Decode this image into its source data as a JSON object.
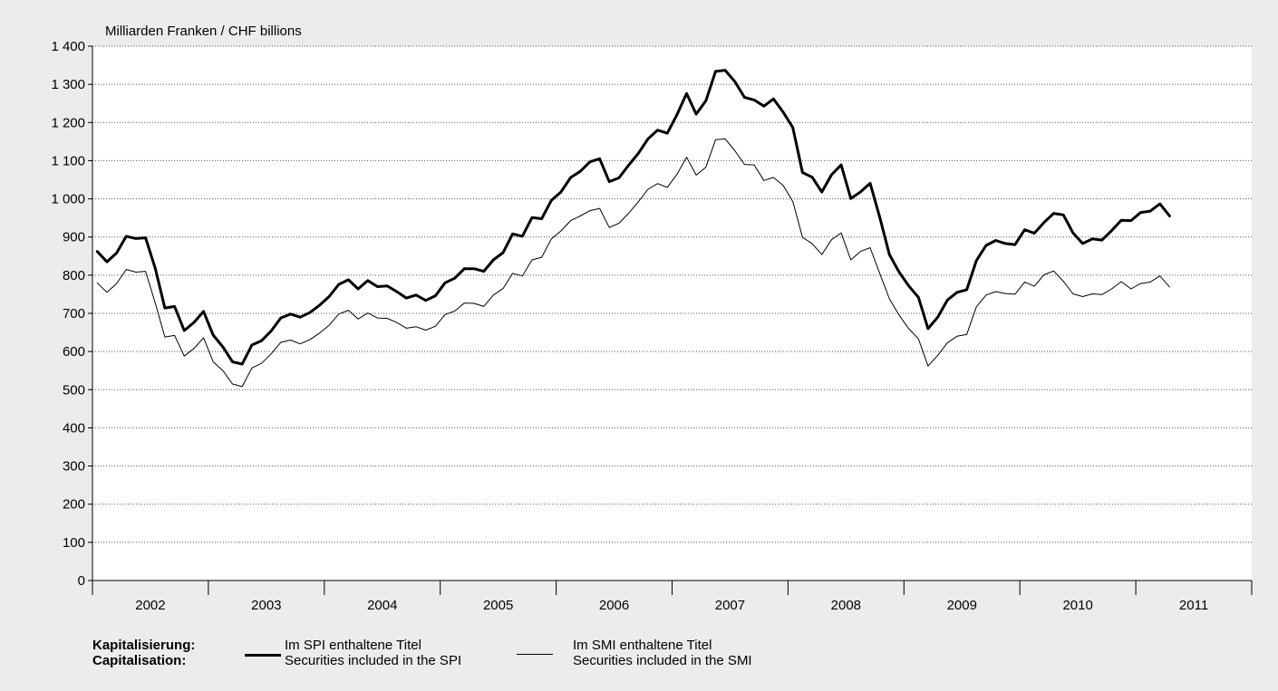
{
  "chart_data": {
    "type": "line",
    "y_unit_label": "Milliarden Franken / CHF billions",
    "ylim": [
      0,
      1400
    ],
    "y_ticks": [
      {
        "value": 0,
        "label": "0"
      },
      {
        "value": 100,
        "label": "100"
      },
      {
        "value": 200,
        "label": "200"
      },
      {
        "value": 300,
        "label": "300"
      },
      {
        "value": 400,
        "label": "400"
      },
      {
        "value": 500,
        "label": "500"
      },
      {
        "value": 600,
        "label": "600"
      },
      {
        "value": 700,
        "label": "700"
      },
      {
        "value": 800,
        "label": "800"
      },
      {
        "value": 900,
        "label": "900"
      },
      {
        "value": 1000,
        "label": "1 000"
      },
      {
        "value": 1100,
        "label": "1 100"
      },
      {
        "value": 1200,
        "label": "1 200"
      },
      {
        "value": 1300,
        "label": "1 300"
      },
      {
        "value": 1400,
        "label": "1 400"
      }
    ],
    "x_years": [
      "2002",
      "2003",
      "2004",
      "2005",
      "2006",
      "2007",
      "2008",
      "2009",
      "2010",
      "2011"
    ],
    "xlim": [
      "2002-01",
      "2011-12"
    ],
    "grid": "horizontal dotted",
    "legend_position": "bottom",
    "series": [
      {
        "name": "Im SPI enthaltene Titel",
        "name_en": "Securities included in the SPI",
        "style": "thick",
        "start": "2002-01",
        "values": [
          862,
          835,
          858,
          902,
          896,
          898,
          818,
          714,
          718,
          655,
          676,
          705,
          643,
          612,
          573,
          567,
          617,
          628,
          654,
          688,
          698,
          690,
          702,
          721,
          744,
          776,
          788,
          764,
          786,
          770,
          772,
          757,
          740,
          748,
          734,
          746,
          780,
          792,
          817,
          817,
          810,
          840,
          859,
          908,
          902,
          951,
          948,
          996,
          1018,
          1056,
          1072,
          1097,
          1105,
          1045,
          1055,
          1088,
          1119,
          1157,
          1180,
          1172,
          1220,
          1276,
          1222,
          1257,
          1334,
          1337,
          1307,
          1266,
          1259,
          1243,
          1262,
          1227,
          1187,
          1069,
          1057,
          1018,
          1063,
          1089,
          1001,
          1018,
          1041,
          951,
          854,
          808,
          772,
          742,
          660,
          690,
          735,
          755,
          762,
          838,
          878,
          891,
          883,
          880,
          919,
          910,
          938,
          962,
          958,
          911,
          883,
          895,
          892,
          917,
          944,
          943,
          964,
          968,
          987,
          955
        ]
      },
      {
        "name": "Im SMI enthaltene Titel",
        "name_en": "Securities included in the SMI",
        "style": "thin",
        "start": "2002-01",
        "values": [
          780,
          755,
          778,
          815,
          808,
          810,
          727,
          638,
          642,
          588,
          608,
          636,
          573,
          550,
          515,
          508,
          557,
          569,
          594,
          624,
          630,
          620,
          631,
          648,
          669,
          698,
          708,
          685,
          701,
          688,
          687,
          676,
          661,
          665,
          656,
          666,
          697,
          706,
          727,
          726,
          718,
          748,
          765,
          805,
          798,
          840,
          847,
          895,
          916,
          943,
          955,
          969,
          975,
          925,
          936,
          962,
          992,
          1025,
          1040,
          1030,
          1064,
          1109,
          1062,
          1083,
          1155,
          1157,
          1126,
          1090,
          1089,
          1048,
          1056,
          1035,
          993,
          899,
          883,
          854,
          893,
          911,
          840,
          862,
          872,
          804,
          738,
          695,
          660,
          633,
          562,
          590,
          623,
          640,
          645,
          717,
          748,
          757,
          752,
          750,
          782,
          771,
          801,
          811,
          784,
          751,
          744,
          751,
          749,
          764,
          783,
          764,
          778,
          782,
          798,
          769
        ]
      }
    ]
  },
  "legend": {
    "title": "Kapitalisierung:",
    "title_en": "Capitalisation:"
  }
}
